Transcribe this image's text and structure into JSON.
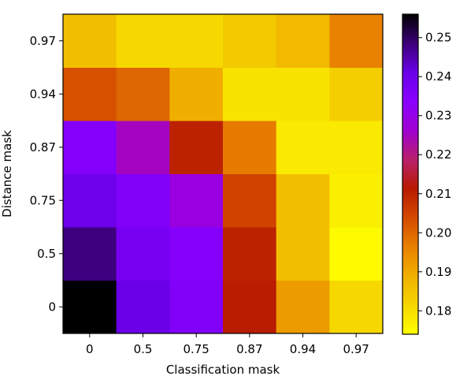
{
  "chart_data": {
    "type": "heatmap",
    "title": "",
    "xlabel": "Classification mask",
    "ylabel": "Distance mask",
    "x_categories": [
      "0",
      "0.5",
      "0.75",
      "0.87",
      "0.94",
      "0.97"
    ],
    "y_categories": [
      "0",
      "0.5",
      "0.75",
      "0.87",
      "0.94",
      "0.97"
    ],
    "values": [
      [
        0.256,
        0.241,
        0.236,
        0.211,
        0.192,
        0.181
      ],
      [
        0.248,
        0.238,
        0.235,
        0.21,
        0.186,
        0.175
      ],
      [
        0.24,
        0.236,
        0.229,
        0.205,
        0.186,
        0.177
      ],
      [
        0.235,
        0.225,
        0.21,
        0.197,
        0.178,
        0.178
      ],
      [
        0.203,
        0.2,
        0.189,
        0.179,
        0.179,
        0.183
      ],
      [
        0.186,
        0.181,
        0.181,
        0.184,
        0.187,
        0.196
      ]
    ],
    "colormap": "gnuplot",
    "colorbar": {
      "range": [
        0.174,
        0.256
      ],
      "ticks": [
        0.18,
        0.19,
        0.2,
        0.21,
        0.22,
        0.23,
        0.24,
        0.25
      ],
      "tick_labels": [
        "0.18",
        "0.19",
        "0.20",
        "0.21",
        "0.22",
        "0.23",
        "0.24",
        "0.25"
      ]
    },
    "colormap_stops": [
      "#ffff00",
      "#f5d600",
      "#f0b000",
      "#e88000",
      "#d44a00",
      "#b81a00",
      "#b8206a",
      "#a000d0",
      "#8a00ff",
      "#6a00e8",
      "#3c0078",
      "#000000"
    ],
    "grid": false
  }
}
